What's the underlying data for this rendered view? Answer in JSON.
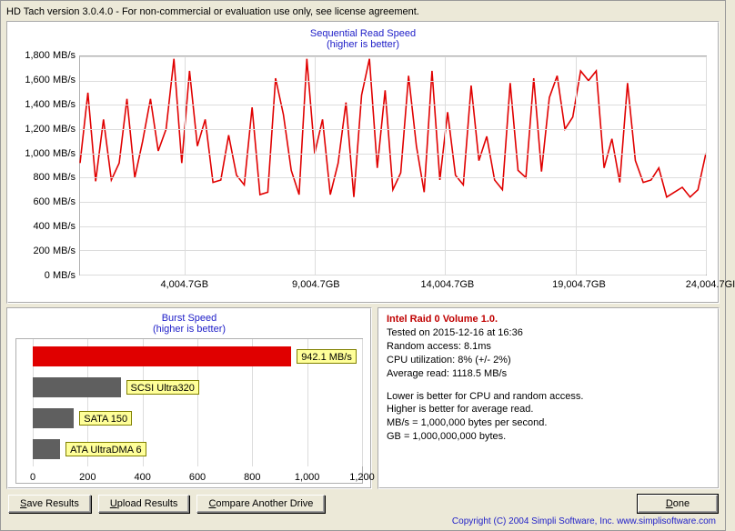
{
  "title": "HD Tach version 3.0.4.0   - For non-commercial or evaluation use only, see license agreement.",
  "seq_chart": {
    "title": "Sequential Read Speed",
    "subtitle": "(higher is better)",
    "ylabel_suffix": " MB/s",
    "ymin": 0,
    "ymax": 1800,
    "ytick_step": 200,
    "xmin": 0,
    "xmax": 24004.7,
    "xticks": [
      4004.7,
      9004.7,
      14004.7,
      19004.7,
      24004.7
    ],
    "xtick_labels": [
      "4,004.7GB",
      "9,004.7GB",
      "14,004.7GB",
      "19,004.7GB",
      "24,004.7GI"
    ],
    "line_color": "#e00000",
    "grid_color": "#dcdcdc",
    "data": [
      [
        0,
        920
      ],
      [
        300,
        1500
      ],
      [
        600,
        770
      ],
      [
        900,
        1280
      ],
      [
        1200,
        780
      ],
      [
        1500,
        920
      ],
      [
        1800,
        1450
      ],
      [
        2100,
        800
      ],
      [
        2400,
        1100
      ],
      [
        2700,
        1450
      ],
      [
        3000,
        1020
      ],
      [
        3300,
        1200
      ],
      [
        3600,
        1780
      ],
      [
        3900,
        920
      ],
      [
        4200,
        1680
      ],
      [
        4500,
        1060
      ],
      [
        4800,
        1280
      ],
      [
        5100,
        760
      ],
      [
        5400,
        780
      ],
      [
        5700,
        1150
      ],
      [
        6000,
        820
      ],
      [
        6300,
        740
      ],
      [
        6600,
        1380
      ],
      [
        6900,
        660
      ],
      [
        7200,
        680
      ],
      [
        7500,
        1620
      ],
      [
        7800,
        1320
      ],
      [
        8100,
        860
      ],
      [
        8400,
        660
      ],
      [
        8700,
        1780
      ],
      [
        9000,
        1000
      ],
      [
        9300,
        1280
      ],
      [
        9600,
        660
      ],
      [
        9900,
        920
      ],
      [
        10200,
        1420
      ],
      [
        10500,
        640
      ],
      [
        10800,
        1480
      ],
      [
        11100,
        1780
      ],
      [
        11400,
        880
      ],
      [
        11700,
        1520
      ],
      [
        12000,
        700
      ],
      [
        12300,
        840
      ],
      [
        12600,
        1640
      ],
      [
        12900,
        1060
      ],
      [
        13200,
        680
      ],
      [
        13500,
        1680
      ],
      [
        13800,
        780
      ],
      [
        14100,
        1340
      ],
      [
        14400,
        820
      ],
      [
        14700,
        740
      ],
      [
        15000,
        1560
      ],
      [
        15300,
        940
      ],
      [
        15600,
        1140
      ],
      [
        15900,
        780
      ],
      [
        16200,
        700
      ],
      [
        16500,
        1580
      ],
      [
        16800,
        860
      ],
      [
        17100,
        800
      ],
      [
        17400,
        1620
      ],
      [
        17700,
        850
      ],
      [
        18000,
        1460
      ],
      [
        18300,
        1640
      ],
      [
        18600,
        1200
      ],
      [
        18900,
        1300
      ],
      [
        19200,
        1680
      ],
      [
        19500,
        1600
      ],
      [
        19800,
        1680
      ],
      [
        20100,
        880
      ],
      [
        20400,
        1120
      ],
      [
        20700,
        760
      ],
      [
        21000,
        1580
      ],
      [
        21300,
        940
      ],
      [
        21600,
        760
      ],
      [
        21900,
        780
      ],
      [
        22200,
        880
      ],
      [
        22500,
        640
      ],
      [
        22800,
        680
      ],
      [
        23100,
        720
      ],
      [
        23400,
        640
      ],
      [
        23700,
        700
      ],
      [
        24004,
        1000
      ]
    ]
  },
  "burst_chart": {
    "title": "Burst Speed",
    "subtitle": "(higher is better)",
    "xmin": 0,
    "xmax": 1200,
    "xtick_step": 200,
    "bars": [
      {
        "value": 942.1,
        "label": "942.1 MB/s",
        "color": "red"
      },
      {
        "value": 320,
        "label": "SCSI Ultra320",
        "color": "gray"
      },
      {
        "value": 150,
        "label": "SATA 150",
        "color": "gray"
      },
      {
        "value": 100,
        "label": "ATA UltraDMA 6",
        "color": "gray"
      }
    ]
  },
  "info": {
    "name": "Intel Raid 0 Volume 1.0.",
    "tested": "Tested on 2015-12-16 at 16:36",
    "random": "Random access: 8.1ms",
    "cpu": "CPU utilization: 8% (+/- 2%)",
    "avg": "Average read: 1118.5 MB/s",
    "note1": "Lower is better for CPU and random access.",
    "note2": "Higher is better for average read.",
    "note3": "MB/s = 1,000,000 bytes per second.",
    "note4": "GB = 1,000,000,000 bytes."
  },
  "buttons": {
    "save": "Save Results",
    "upload": "Upload Results",
    "compare": "Compare Another Drive",
    "done": "Done"
  },
  "copyright": "Copyright (C) 2004 Simpli Software, Inc. www.simplisoftware.com"
}
